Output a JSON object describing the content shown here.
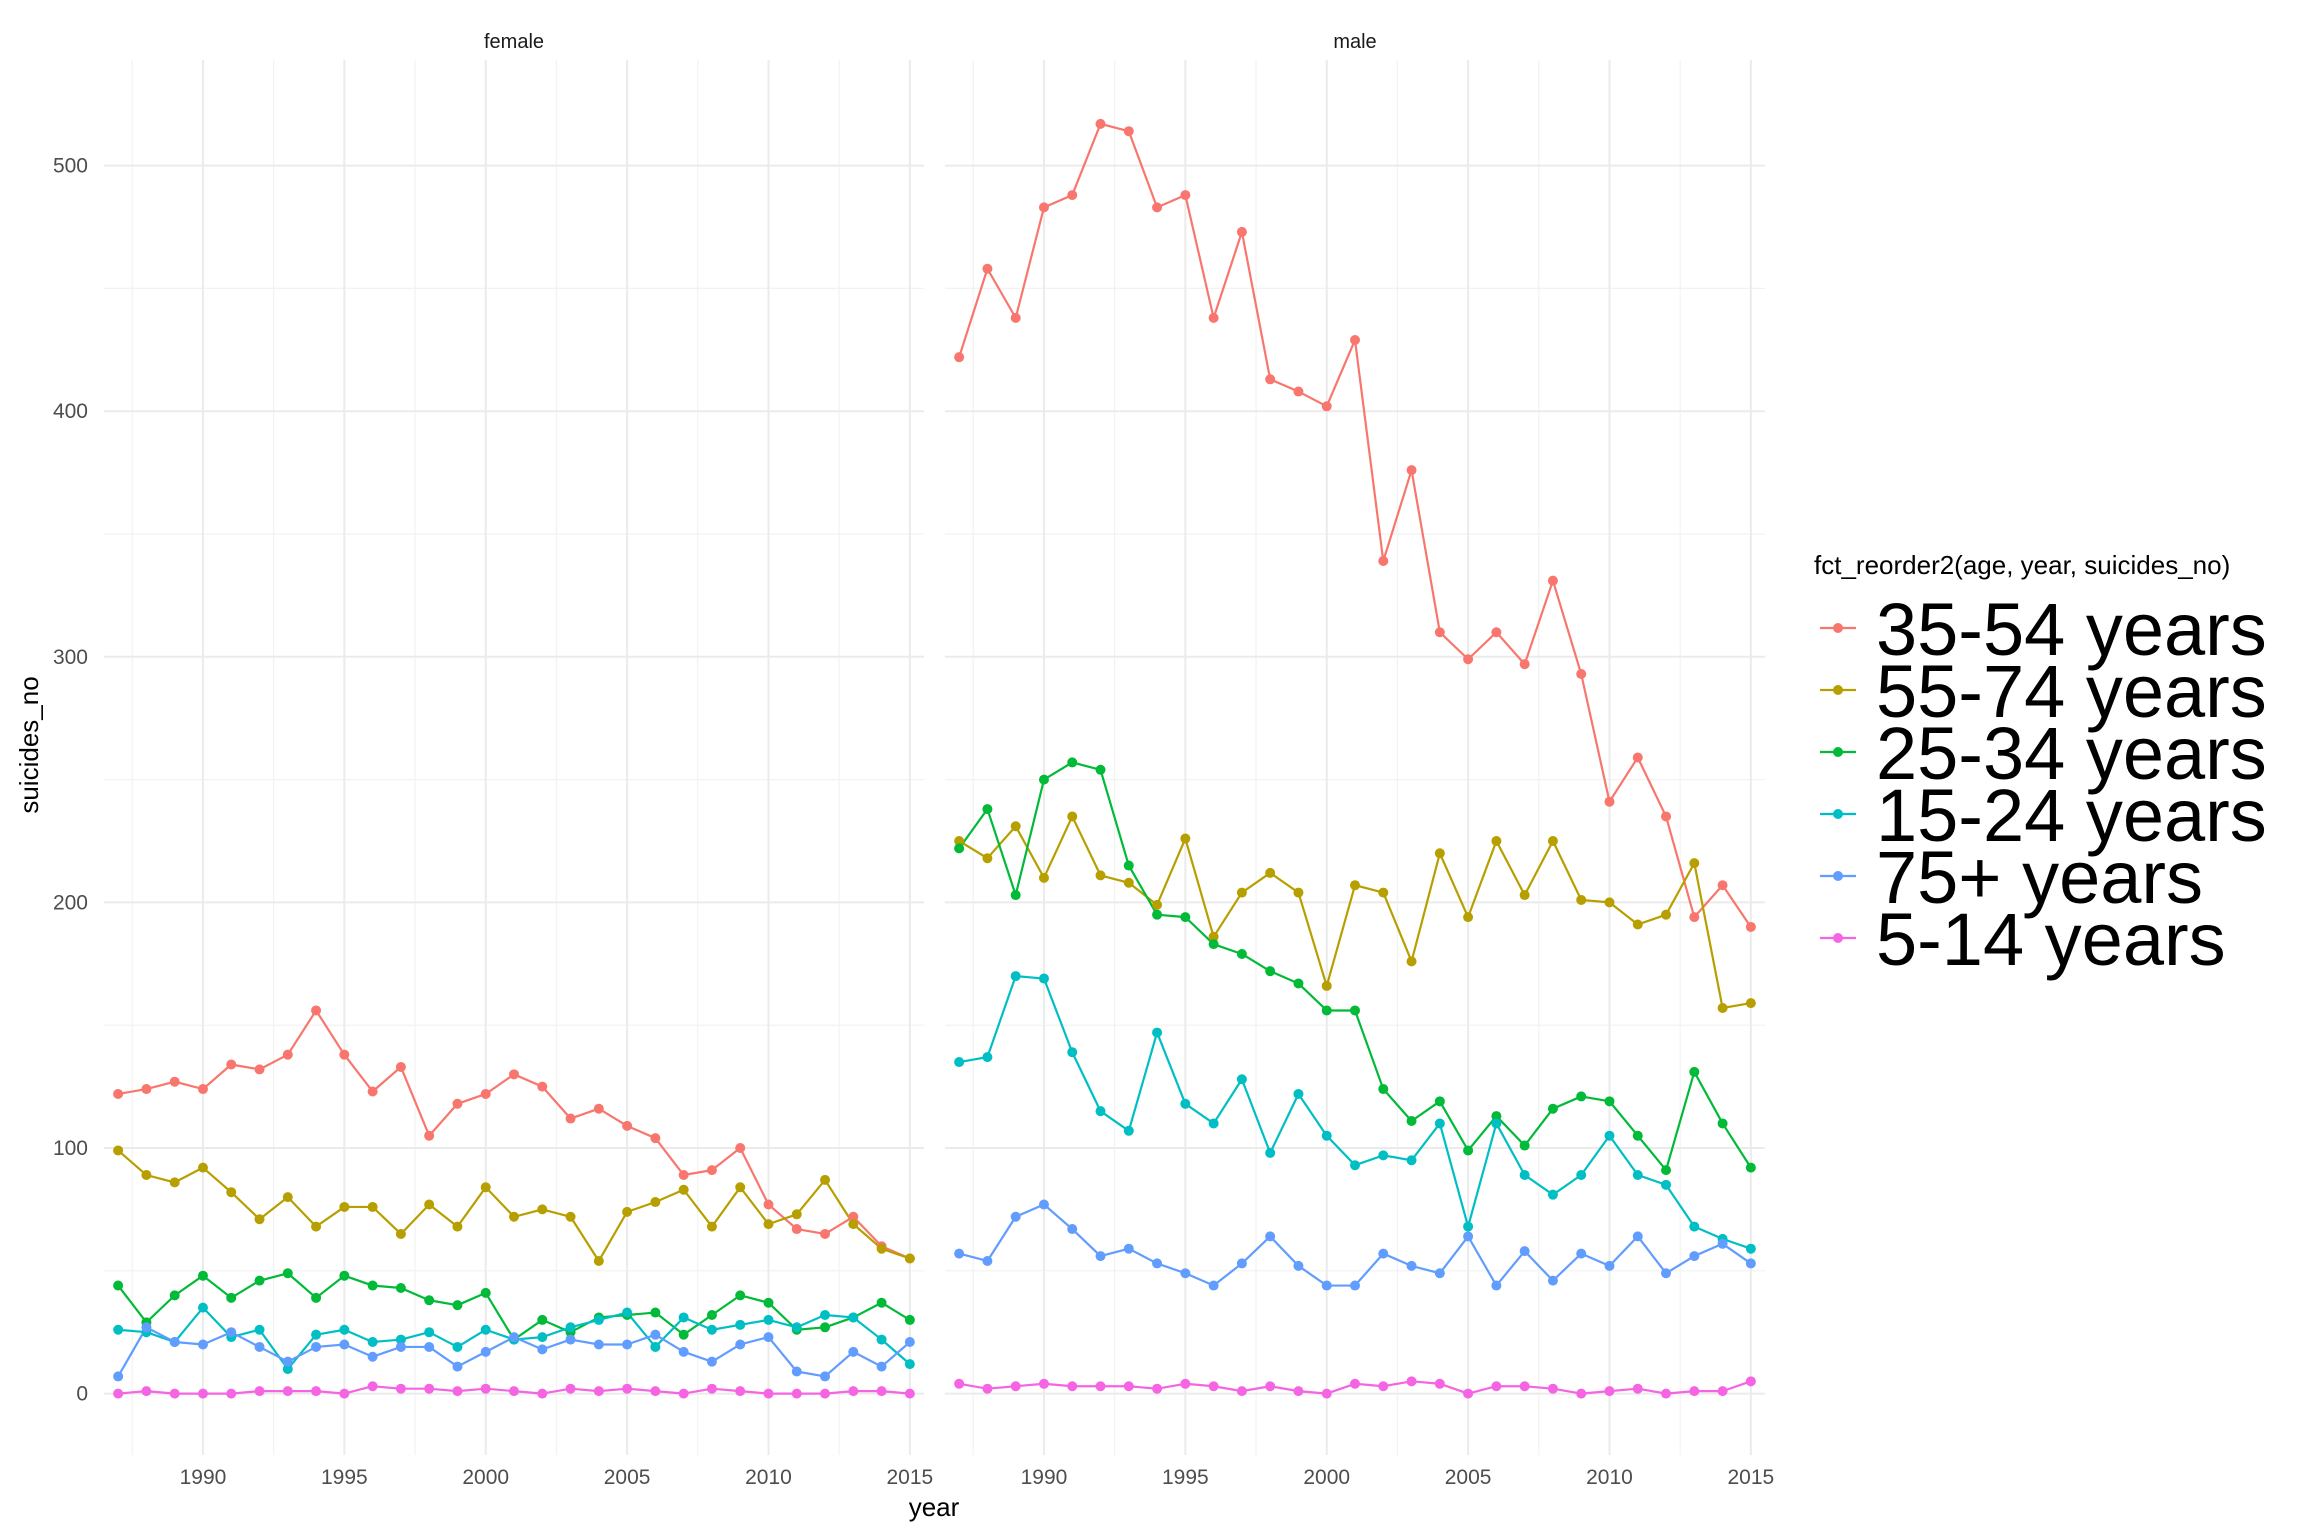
{
  "chart_data": {
    "type": "line",
    "xlabel": "year",
    "ylabel": "suicides_no",
    "xlim": [
      1986.5,
      2015.5
    ],
    "ylim": [
      -25,
      543
    ],
    "x_ticks": [
      1990,
      1995,
      2000,
      2005,
      2010,
      2015
    ],
    "y_ticks": [
      0,
      100,
      200,
      300,
      400,
      500
    ],
    "grid": true,
    "legend_title": "fct_reorder2(age, year, suicides_no)",
    "legend_position": "right",
    "x": [
      1987,
      1988,
      1989,
      1990,
      1991,
      1992,
      1993,
      1994,
      1995,
      1996,
      1997,
      1998,
      1999,
      2000,
      2001,
      2002,
      2003,
      2004,
      2005,
      2006,
      2007,
      2008,
      2009,
      2010,
      2011,
      2012,
      2013,
      2014,
      2015
    ],
    "panels": [
      {
        "label": "female",
        "series": [
          {
            "name": "35-54 years",
            "color": "#F8766D",
            "values": [
              122,
              124,
              127,
              124,
              134,
              132,
              138,
              156,
              138,
              123,
              133,
              105,
              118,
              122,
              130,
              125,
              112,
              116,
              109,
              104,
              89,
              91,
              100,
              77,
              67,
              65,
              72,
              60,
              55
            ]
          },
          {
            "name": "55-74 years",
            "color": "#B79F00",
            "values": [
              99,
              89,
              86,
              92,
              82,
              71,
              80,
              68,
              76,
              76,
              65,
              77,
              68,
              84,
              72,
              75,
              72,
              54,
              74,
              78,
              83,
              68,
              84,
              69,
              73,
              87,
              69,
              59,
              55
            ]
          },
          {
            "name": "25-34 years",
            "color": "#00BA38",
            "values": [
              44,
              29,
              40,
              48,
              39,
              46,
              49,
              39,
              48,
              44,
              43,
              38,
              36,
              41,
              22,
              30,
              25,
              31,
              32,
              33,
              24,
              32,
              40,
              37,
              26,
              27,
              31,
              37,
              30
            ]
          },
          {
            "name": "15-24 years",
            "color": "#00BFC4",
            "values": [
              26,
              25,
              21,
              35,
              23,
              26,
              10,
              24,
              26,
              21,
              22,
              25,
              19,
              26,
              22,
              23,
              27,
              30,
              33,
              19,
              31,
              26,
              28,
              30,
              27,
              32,
              31,
              22,
              12
            ]
          },
          {
            "name": "75+ years",
            "color": "#619CFF",
            "values": [
              7,
              27,
              21,
              20,
              25,
              19,
              13,
              19,
              20,
              15,
              19,
              19,
              11,
              17,
              23,
              18,
              22,
              20,
              20,
              24,
              17,
              13,
              20,
              23,
              9,
              7,
              17,
              11,
              21
            ]
          },
          {
            "name": "5-14 years",
            "color": "#F564E3",
            "values": [
              0,
              1,
              0,
              0,
              0,
              1,
              1,
              1,
              0,
              3,
              2,
              2,
              1,
              2,
              1,
              0,
              2,
              1,
              2,
              1,
              0,
              2,
              1,
              0,
              0,
              0,
              1,
              1,
              0
            ]
          }
        ]
      },
      {
        "label": "male",
        "series": [
          {
            "name": "35-54 years",
            "color": "#F8766D",
            "values": [
              422,
              458,
              438,
              483,
              488,
              517,
              514,
              483,
              488,
              438,
              473,
              413,
              408,
              402,
              429,
              339,
              376,
              310,
              299,
              310,
              297,
              331,
              293,
              241,
              259,
              235,
              194,
              207,
              190
            ]
          },
          {
            "name": "55-74 years",
            "color": "#B79F00",
            "values": [
              225,
              218,
              231,
              210,
              235,
              211,
              208,
              199,
              226,
              186,
              204,
              212,
              204,
              166,
              207,
              204,
              176,
              220,
              194,
              225,
              203,
              225,
              201,
              200,
              191,
              195,
              216,
              157,
              159
            ]
          },
          {
            "name": "25-34 years",
            "color": "#00BA38",
            "values": [
              222,
              238,
              203,
              250,
              257,
              254,
              215,
              195,
              194,
              183,
              179,
              172,
              167,
              156,
              156,
              124,
              111,
              119,
              99,
              113,
              101,
              116,
              121,
              119,
              105,
              91,
              131,
              110,
              92
            ]
          },
          {
            "name": "15-24 years",
            "color": "#00BFC4",
            "values": [
              135,
              137,
              170,
              169,
              139,
              115,
              107,
              147,
              118,
              110,
              128,
              98,
              122,
              105,
              93,
              97,
              95,
              110,
              68,
              110,
              89,
              81,
              89,
              105,
              89,
              85,
              68,
              63,
              59
            ]
          },
          {
            "name": "75+ years",
            "color": "#619CFF",
            "values": [
              57,
              54,
              72,
              77,
              67,
              56,
              59,
              53,
              49,
              44,
              53,
              64,
              52,
              44,
              44,
              57,
              52,
              49,
              64,
              44,
              58,
              46,
              57,
              52,
              64,
              49,
              56,
              61,
              53
            ]
          },
          {
            "name": "5-14 years",
            "color": "#F564E3",
            "values": [
              4,
              2,
              3,
              4,
              3,
              3,
              3,
              2,
              4,
              3,
              1,
              3,
              1,
              0,
              4,
              3,
              5,
              4,
              0,
              3,
              3,
              2,
              0,
              1,
              2,
              0,
              1,
              1,
              5
            ]
          }
        ]
      }
    ]
  }
}
